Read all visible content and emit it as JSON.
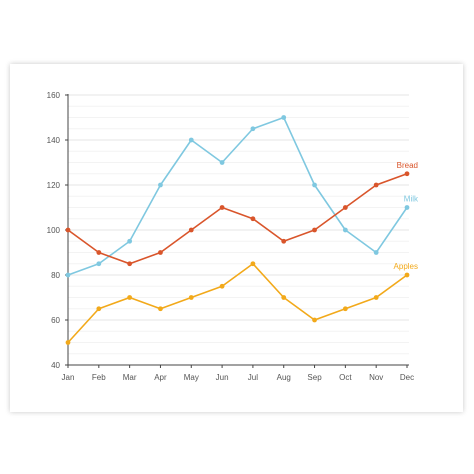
{
  "chart_data": {
    "type": "line",
    "categories": [
      "Jan",
      "Feb",
      "Mar",
      "Apr",
      "May",
      "Jun",
      "Jul",
      "Aug",
      "Sep",
      "Oct",
      "Nov",
      "Dec"
    ],
    "ylim": [
      40,
      160
    ],
    "yticks": [
      40,
      60,
      80,
      100,
      120,
      140,
      160
    ],
    "grid": true,
    "series": [
      {
        "name": "Milk",
        "color": "#7fc8e0",
        "values": [
          80,
          85,
          95,
          120,
          140,
          130,
          145,
          150,
          120,
          100,
          90,
          110
        ]
      },
      {
        "name": "Bread",
        "color": "#d9552b",
        "values": [
          100,
          90,
          85,
          90,
          100,
          110,
          105,
          95,
          100,
          110,
          120,
          125
        ]
      },
      {
        "name": "Apples",
        "color": "#f2a91a",
        "values": [
          50,
          65,
          70,
          65,
          70,
          75,
          85,
          70,
          60,
          65,
          70,
          80
        ]
      }
    ]
  }
}
